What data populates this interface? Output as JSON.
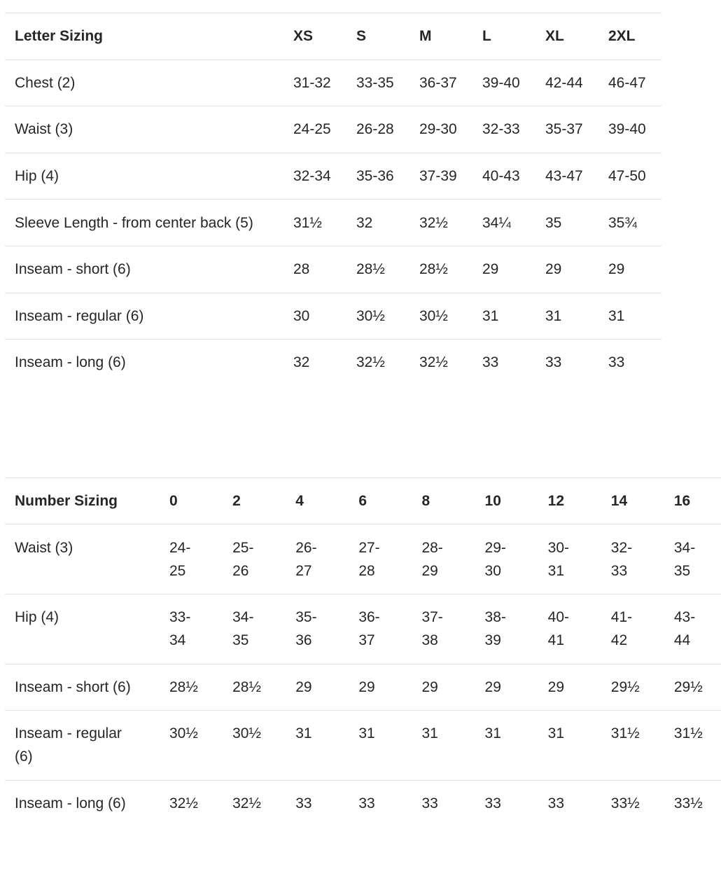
{
  "page": {
    "background_color": "#ffffff",
    "text_color": "#24262a",
    "divider_color": "#e3e3e3"
  },
  "letter_table": {
    "header": {
      "label": "Letter Sizing",
      "columns": [
        "XS",
        "S",
        "M",
        "L",
        "XL",
        "2XL"
      ]
    },
    "rows": [
      {
        "label": "Chest (2)",
        "values": [
          "31-32",
          "33-35",
          "36-37",
          "39-40",
          "42-44",
          "46-47"
        ]
      },
      {
        "label": "Waist (3)",
        "values": [
          "24-25",
          "26-28",
          "29-30",
          "32-33",
          "35-37",
          "39-40"
        ]
      },
      {
        "label": "Hip (4)",
        "values": [
          "32-34",
          "35-36",
          "37-39",
          "40-43",
          "43-47",
          "47-50"
        ]
      },
      {
        "label": "Sleeve Length - from center back (5)",
        "values": [
          "31½",
          "32",
          "32½",
          "34¼",
          "35",
          "35¾"
        ]
      },
      {
        "label": "Inseam - short (6)",
        "values": [
          "28",
          "28½",
          "28½",
          "29",
          "29",
          "29"
        ]
      },
      {
        "label": "Inseam - regular (6)",
        "values": [
          "30",
          "30½",
          "30½",
          "31",
          "31",
          "31"
        ]
      },
      {
        "label": "Inseam - long (6)",
        "values": [
          "32",
          "32½",
          "32½",
          "33",
          "33",
          "33"
        ]
      }
    ]
  },
  "number_table": {
    "header": {
      "label": "Number Sizing",
      "columns": [
        "0",
        "2",
        "4",
        "6",
        "8",
        "10",
        "12",
        "14",
        "16"
      ]
    },
    "rows": [
      {
        "label": "Waist (3)",
        "values": [
          "24-\n25",
          "25-\n26",
          "26-\n27",
          "27-\n28",
          "28-\n29",
          "29-\n30",
          "30-\n31",
          "32-\n33",
          "34-\n35"
        ]
      },
      {
        "label": "Hip (4)",
        "values": [
          "33-\n34",
          "34-\n35",
          "35-\n36",
          "36-\n37",
          "37-\n38",
          "38-\n39",
          "40-\n41",
          "41-\n42",
          "43-\n44"
        ]
      },
      {
        "label": "Inseam - short (6)",
        "values": [
          "28½",
          "28½",
          "29",
          "29",
          "29",
          "29",
          "29",
          "29½",
          "29½"
        ]
      },
      {
        "label": "Inseam - regular\n(6)",
        "values": [
          "30½",
          "30½",
          "31",
          "31",
          "31",
          "31",
          "31",
          "31½",
          "31½"
        ]
      },
      {
        "label": "Inseam - long (6)",
        "values": [
          "32½",
          "32½",
          "33",
          "33",
          "33",
          "33",
          "33",
          "33½",
          "33½"
        ]
      }
    ]
  }
}
